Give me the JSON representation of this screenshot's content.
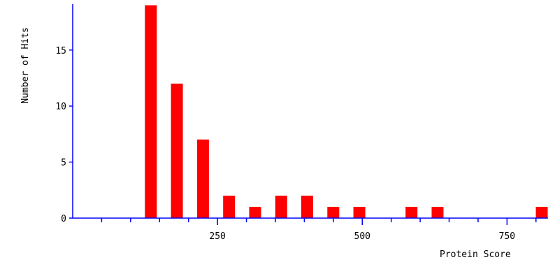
{
  "chart_data": {
    "type": "bar",
    "title": "",
    "xlabel": "Protein Score",
    "ylabel": "Number of Hits",
    "x": [
      135,
      180,
      225,
      270,
      315,
      360,
      405,
      450,
      495,
      585,
      630,
      810
    ],
    "values": [
      19,
      12,
      7,
      2,
      1,
      2,
      2,
      1,
      1,
      1,
      1,
      1
    ],
    "xlim": [
      0,
      850
    ],
    "ylim": [
      0,
      19
    ],
    "xticks_major": [
      250,
      500,
      750
    ],
    "xticks_minor": [
      50,
      100,
      150,
      200,
      300,
      350,
      400,
      450,
      550,
      600,
      650,
      700,
      800
    ],
    "yticks": [
      0,
      5,
      10,
      15
    ],
    "grid": false,
    "legend": "none",
    "colors": {
      "bar": "#ff0000",
      "axis": "#0000ff",
      "text": "#000000"
    }
  }
}
